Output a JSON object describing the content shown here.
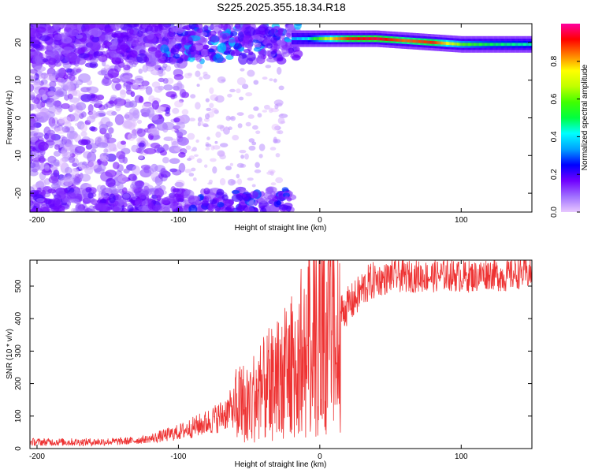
{
  "figure": {
    "title": "S225.2025.355.18.34.R18"
  },
  "chart_data": [
    {
      "type": "heatmap",
      "title": "S225.2025.355.18.34.R18",
      "xlabel": "Height of straight line (km)",
      "ylabel": "Frequency (Hz)",
      "xlim": [
        -205,
        150
      ],
      "ylim": [
        -25,
        25
      ],
      "xticks": [
        -200,
        -100,
        0,
        100
      ],
      "yticks": [
        -20,
        -10,
        0,
        10,
        20
      ],
      "grid": false,
      "colorbar": {
        "label": "Normalized spectral amplitude",
        "range": [
          0,
          1
        ],
        "ticks": [
          0.0,
          0.2,
          0.4,
          0.6,
          0.8
        ],
        "colormap": [
          "#e8c8ff",
          "#a070ff",
          "#7000ff",
          "#0000ff",
          "#00a0ff",
          "#00ffff",
          "#00ff40",
          "#40ff00",
          "#c0ff00",
          "#ffff00",
          "#ff8000",
          "#ff0000",
          "#ff00a0"
        ]
      },
      "ridge": {
        "x": [
          -20,
          -10,
          0,
          10,
          20,
          40,
          60,
          80,
          100,
          120,
          150
        ],
        "y": [
          21,
          21,
          21,
          21,
          21,
          21,
          20.5,
          20,
          19.5,
          19.5,
          19.5
        ],
        "amplitude": [
          0.35,
          0.4,
          0.6,
          0.8,
          0.9,
          0.95,
          0.85,
          0.9,
          0.6,
          0.5,
          0.45
        ]
      }
    },
    {
      "type": "line",
      "xlabel": "Height of straight line (km)",
      "ylabel": "SNR (10 * v/v)",
      "xlim": [
        -205,
        150
      ],
      "ylim": [
        0,
        580
      ],
      "xticks": [
        -200,
        -100,
        0,
        100
      ],
      "yticks": [
        0,
        100,
        200,
        300,
        400,
        500
      ],
      "grid": false,
      "series": [
        {
          "color": "#ee3333",
          "x": [
            -205,
            -190,
            -180,
            -160,
            -140,
            -130,
            -120,
            -110,
            -100,
            -90,
            -80,
            -70,
            -60,
            -50,
            -40,
            -35,
            -30,
            -25,
            -20,
            -15,
            -10,
            -5,
            0,
            5,
            10,
            12,
            15,
            20,
            25,
            30,
            35,
            40,
            45,
            50,
            60,
            70,
            80,
            90,
            100,
            110,
            120,
            130,
            140,
            150
          ],
          "y": [
            20,
            20,
            20,
            20,
            22,
            25,
            30,
            40,
            50,
            65,
            80,
            100,
            130,
            150,
            180,
            200,
            220,
            230,
            250,
            250,
            300,
            330,
            350,
            380,
            380,
            180,
            420,
            440,
            460,
            490,
            510,
            520,
            520,
            530,
            530,
            530,
            530,
            535,
            530,
            530,
            540,
            530,
            540,
            540
          ]
        }
      ]
    }
  ]
}
